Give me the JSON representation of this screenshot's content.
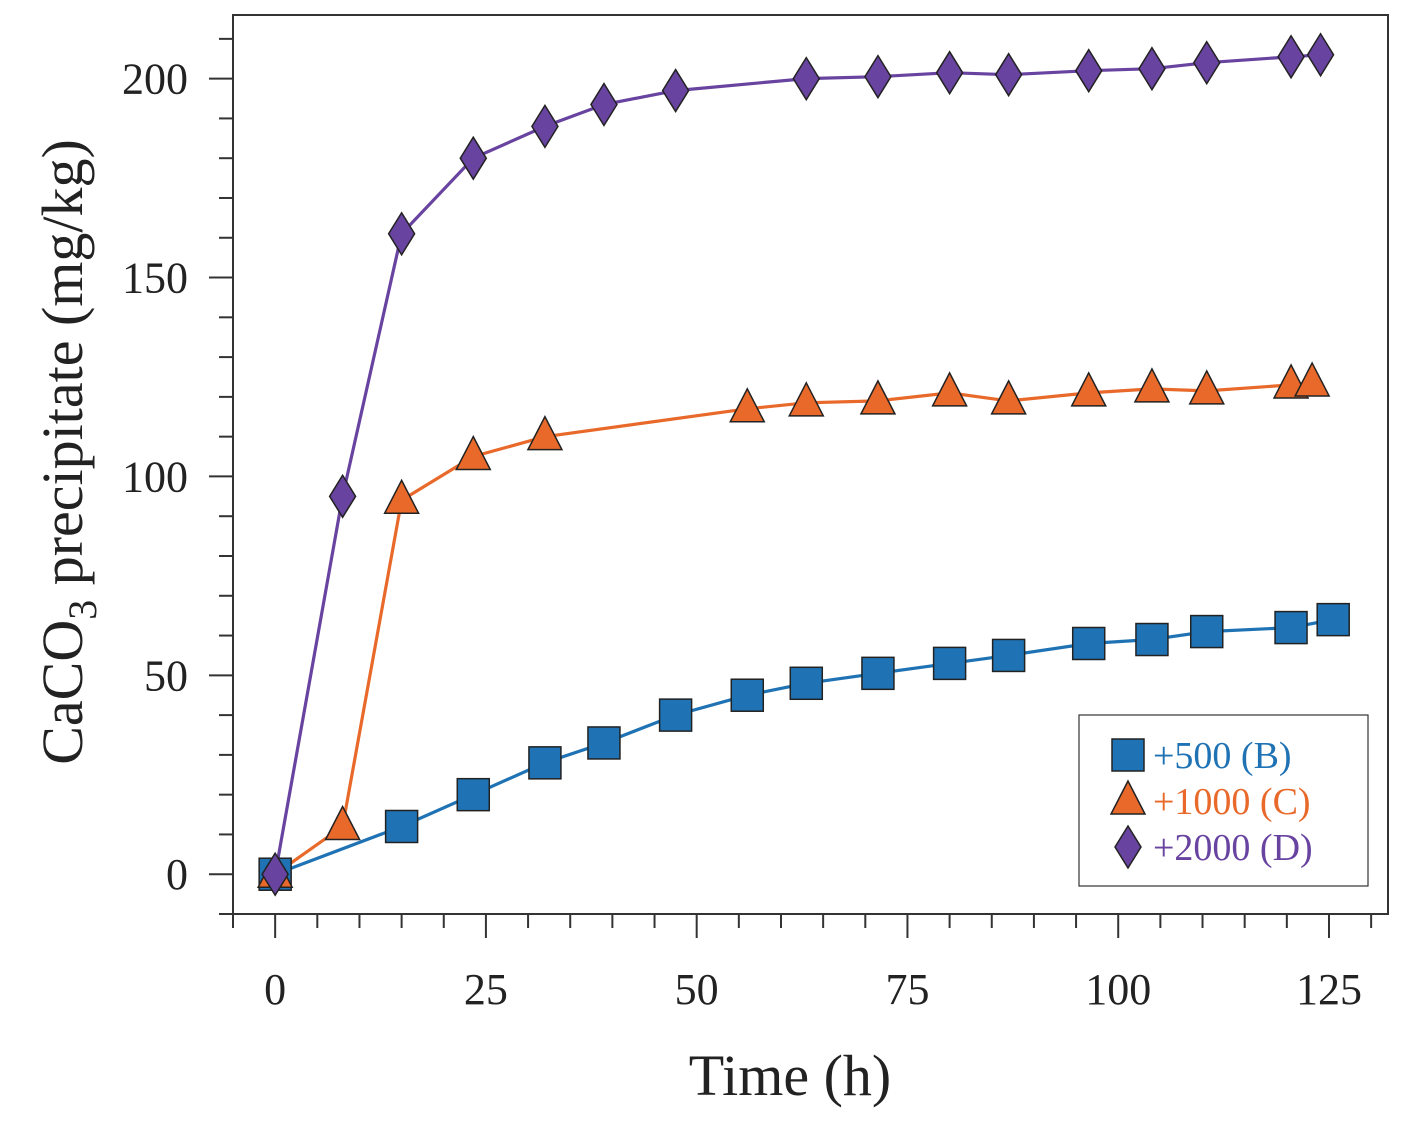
{
  "chart_data": {
    "type": "line",
    "xlabel": "Time (h)",
    "ylabel_main": "CaCO",
    "ylabel_sub": "3",
    "ylabel_rest": " precipitate (mg/kg)",
    "xlim": [
      -5,
      132
    ],
    "ylim": [
      -10,
      216
    ],
    "xticks": [
      0,
      25,
      50,
      75,
      100,
      125
    ],
    "yticks": [
      0,
      50,
      100,
      150,
      200
    ],
    "grid": false,
    "legend_position": "bottom-right",
    "series": [
      {
        "name": "+500 (B)",
        "color": "#1f73b4",
        "marker": "square",
        "x": [
          0,
          15,
          23.5,
          32,
          39,
          47.5,
          56,
          63,
          71.5,
          80,
          87,
          96.5,
          104,
          110.5,
          120.5,
          125.5
        ],
        "y": [
          0,
          12,
          20,
          28,
          33,
          40,
          45,
          48,
          50.5,
          53,
          55,
          58,
          59,
          61,
          62,
          64
        ]
      },
      {
        "name": "+1000 (C)",
        "color": "#e8692a",
        "marker": "triangle",
        "x": [
          0,
          8,
          15,
          23.5,
          32,
          56,
          63,
          71.5,
          80,
          87,
          96.5,
          104,
          110.5,
          120.5,
          123
        ],
        "y": [
          0,
          12,
          94,
          105,
          110,
          117,
          118.5,
          119,
          121,
          119,
          121,
          122,
          121.5,
          123,
          123.5
        ]
      },
      {
        "name": "+2000 (D)",
        "color": "#6843a0",
        "marker": "diamond",
        "x": [
          0,
          8,
          15,
          23.5,
          32,
          39,
          47.5,
          63,
          71.5,
          80,
          87,
          96.5,
          104,
          110.5,
          120.5,
          124
        ],
        "y": [
          0,
          95,
          161,
          180,
          188,
          193.5,
          197,
          200,
          200.5,
          201.5,
          201,
          202,
          202.5,
          204,
          205.5,
          206
        ]
      }
    ]
  }
}
